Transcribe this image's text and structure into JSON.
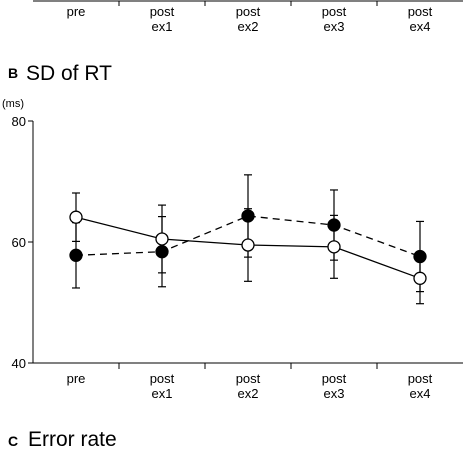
{
  "panel_above": {
    "categories": [
      "pre",
      "post ex1",
      "post ex2",
      "post ex3",
      "post ex4"
    ]
  },
  "chart_data": {
    "type": "line",
    "panel": "B",
    "title": "SD of RT",
    "ylabel": "(ms)",
    "categories": [
      "pre",
      "post ex1",
      "post ex2",
      "post ex3",
      "post ex4"
    ],
    "ylim": [
      40,
      80
    ],
    "yticks": [
      40,
      60,
      80
    ],
    "series": [
      {
        "color": "#000000",
        "marker_fill": "#ffffff",
        "dash": false,
        "values": [
          64.1,
          60.5,
          59.5,
          59.2,
          54.0
        ],
        "errors": [
          4.0,
          5.6,
          6.0,
          5.2,
          4.2
        ]
      },
      {
        "color": "#000000",
        "marker_fill": "#000000",
        "dash": true,
        "values": [
          57.8,
          58.4,
          64.3,
          62.8,
          57.6
        ],
        "errors": [
          5.4,
          5.8,
          6.8,
          5.8,
          5.8
        ]
      }
    ]
  },
  "panel_below": {
    "panel": "C",
    "title": "Error rate"
  }
}
